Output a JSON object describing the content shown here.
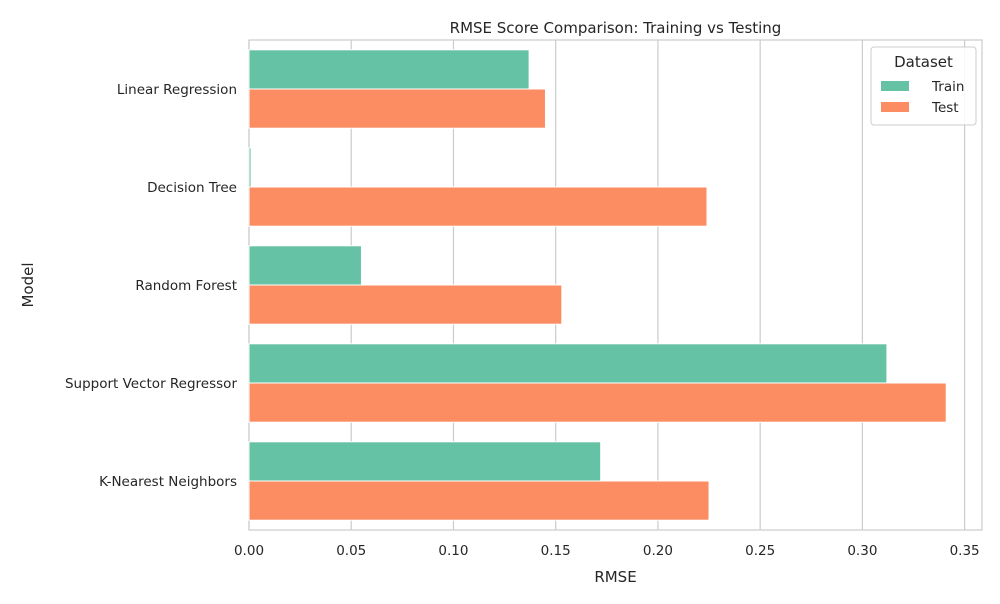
{
  "chart_data": {
    "type": "bar",
    "orientation": "horizontal",
    "title": "RMSE Score Comparison: Training vs Testing",
    "xlabel": "RMSE",
    "ylabel": "Model",
    "categories": [
      "Linear Regression",
      "Decision Tree",
      "Random Forest",
      "Support Vector Regressor",
      "K-Nearest Neighbors"
    ],
    "series": [
      {
        "name": "Train",
        "color": "#66c2a5",
        "values": [
          0.137,
          0.001,
          0.055,
          0.312,
          0.172
        ]
      },
      {
        "name": "Test",
        "color": "#fc8d62",
        "values": [
          0.145,
          0.224,
          0.153,
          0.341,
          0.225
        ]
      }
    ],
    "xlim": [
      0,
      0.3585
    ],
    "xticks": [
      0.0,
      0.05,
      0.1,
      0.15,
      0.2,
      0.25,
      0.3,
      0.35
    ],
    "xtick_labels": [
      "0.00",
      "0.05",
      "0.10",
      "0.15",
      "0.20",
      "0.25",
      "0.30",
      "0.35"
    ],
    "grid": true,
    "legend": {
      "title": "Dataset",
      "placement": "top-right"
    }
  }
}
